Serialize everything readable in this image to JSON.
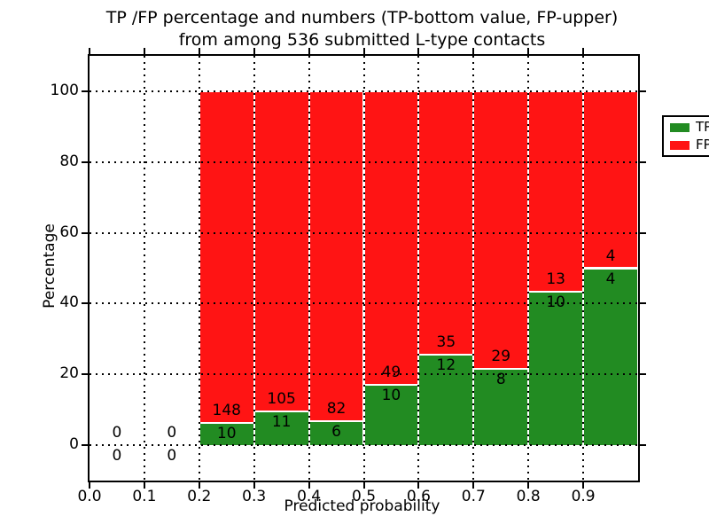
{
  "title": {
    "line1": "TP /FP percentage and numbers (TP-bottom value, FP-upper)",
    "line2": "from among 536 submitted L-type contacts"
  },
  "axes": {
    "xlabel": "Predicted probability",
    "ylabel": "Percentage",
    "xlim": [
      0.0,
      1.0
    ],
    "ylim": [
      -10,
      110
    ],
    "x_ticks": [
      {
        "value": 0.0,
        "label": "0.0"
      },
      {
        "value": 0.1,
        "label": "0.1"
      },
      {
        "value": 0.2,
        "label": "0.2"
      },
      {
        "value": 0.3,
        "label": "0.3"
      },
      {
        "value": 0.4,
        "label": "0.4"
      },
      {
        "value": 0.5,
        "label": "0.5"
      },
      {
        "value": 0.6,
        "label": "0.6"
      },
      {
        "value": 0.7,
        "label": "0.7"
      },
      {
        "value": 0.8,
        "label": "0.8"
      },
      {
        "value": 0.9,
        "label": "0.9"
      }
    ],
    "y_ticks": [
      {
        "value": 0,
        "label": "0"
      },
      {
        "value": 20,
        "label": "20"
      },
      {
        "value": 40,
        "label": "40"
      },
      {
        "value": 60,
        "label": "60"
      },
      {
        "value": 80,
        "label": "80"
      },
      {
        "value": 100,
        "label": "100"
      }
    ]
  },
  "legend": {
    "items": [
      {
        "label": "TP",
        "color": "#228b22"
      },
      {
        "label": "FP",
        "color": "#ff1414"
      }
    ]
  },
  "colors": {
    "tp": "#228b22",
    "fp": "#ff1414",
    "bar_edge": "#ffffff",
    "grid": "#000000",
    "background": "#ffffff"
  },
  "chart_data": {
    "type": "bar",
    "stacked": true,
    "unit": "percent",
    "title": "TP /FP percentage and numbers (TP-bottom value, FP-upper) from among 536 submitted L-type contacts",
    "xlabel": "Predicted probability",
    "ylabel": "Percentage",
    "xlim": [
      0.0,
      1.0
    ],
    "ylim": [
      -10,
      110
    ],
    "grid": true,
    "legend_position": "upper right",
    "total_submitted": 536,
    "categories": [
      "0.0-0.1",
      "0.1-0.2",
      "0.2-0.3",
      "0.3-0.4",
      "0.4-0.5",
      "0.5-0.6",
      "0.6-0.7",
      "0.7-0.8",
      "0.8-0.9",
      "0.9-1.0"
    ],
    "bins": [
      {
        "x0": 0.0,
        "x1": 0.1,
        "tp_count": 0,
        "fp_count": 0,
        "tp_pct": 0,
        "fp_pct": 0
      },
      {
        "x0": 0.1,
        "x1": 0.2,
        "tp_count": 0,
        "fp_count": 0,
        "tp_pct": 0,
        "fp_pct": 0
      },
      {
        "x0": 0.2,
        "x1": 0.3,
        "tp_count": 10,
        "fp_count": 148,
        "tp_pct": 6.33,
        "fp_pct": 93.67
      },
      {
        "x0": 0.3,
        "x1": 0.4,
        "tp_count": 11,
        "fp_count": 105,
        "tp_pct": 9.48,
        "fp_pct": 90.52
      },
      {
        "x0": 0.4,
        "x1": 0.5,
        "tp_count": 6,
        "fp_count": 82,
        "tp_pct": 6.82,
        "fp_pct": 93.18
      },
      {
        "x0": 0.5,
        "x1": 0.6,
        "tp_count": 10,
        "fp_count": 49,
        "tp_pct": 16.95,
        "fp_pct": 83.05
      },
      {
        "x0": 0.6,
        "x1": 0.7,
        "tp_count": 12,
        "fp_count": 35,
        "tp_pct": 25.53,
        "fp_pct": 74.47
      },
      {
        "x0": 0.7,
        "x1": 0.8,
        "tp_count": 8,
        "fp_count": 29,
        "tp_pct": 21.62,
        "fp_pct": 78.38
      },
      {
        "x0": 0.8,
        "x1": 0.9,
        "tp_count": 10,
        "fp_count": 13,
        "tp_pct": 43.48,
        "fp_pct": 56.52
      },
      {
        "x0": 0.9,
        "x1": 1.0,
        "tp_count": 4,
        "fp_count": 4,
        "tp_pct": 50.0,
        "fp_pct": 50.0
      }
    ],
    "series": [
      {
        "name": "TP",
        "color": "#228b22",
        "counts": [
          0,
          0,
          10,
          11,
          6,
          10,
          12,
          8,
          10,
          4
        ]
      },
      {
        "name": "FP",
        "color": "#ff1414",
        "counts": [
          0,
          0,
          148,
          105,
          82,
          49,
          35,
          29,
          13,
          4
        ]
      }
    ]
  }
}
